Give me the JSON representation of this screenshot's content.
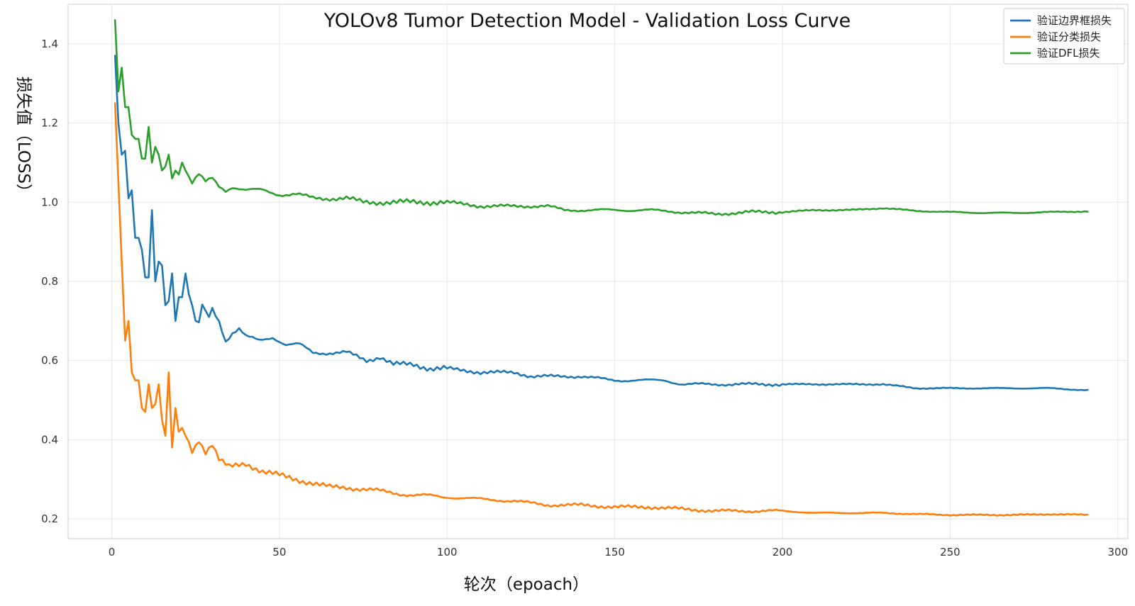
{
  "chart_data": {
    "type": "line",
    "title": "YOLOv8 Tumor Detection Model - Validation Loss Curve",
    "xlabel": "轮次（epoach）",
    "ylabel": "损失值（LOSS）",
    "xlim": [
      -13,
      303
    ],
    "ylim": [
      0.15,
      1.5
    ],
    "xticks": [
      "0",
      "50",
      "100",
      "150",
      "200",
      "250",
      "300"
    ],
    "yticks": [
      "0.2",
      "0.4",
      "0.6",
      "0.8",
      "1.0",
      "1.2",
      "1.4"
    ],
    "grid": true,
    "legend_position": "top-right",
    "x_range": [
      1,
      291
    ],
    "series": [
      {
        "name": "验证边界框损失",
        "color": "#1f77b4",
        "keypoints": [
          [
            1,
            1.37
          ],
          [
            2,
            1.2
          ],
          [
            3,
            1.12
          ],
          [
            4,
            1.13
          ],
          [
            5,
            1.01
          ],
          [
            6,
            1.03
          ],
          [
            7,
            0.91
          ],
          [
            8,
            0.91
          ],
          [
            9,
            0.88
          ],
          [
            10,
            0.81
          ],
          [
            11,
            0.81
          ],
          [
            12,
            0.98
          ],
          [
            13,
            0.8
          ],
          [
            14,
            0.85
          ],
          [
            15,
            0.84
          ],
          [
            16,
            0.74
          ],
          [
            17,
            0.75
          ],
          [
            18,
            0.82
          ],
          [
            19,
            0.7
          ],
          [
            20,
            0.76
          ],
          [
            21,
            0.76
          ],
          [
            22,
            0.82
          ],
          [
            23,
            0.77
          ],
          [
            25,
            0.7
          ],
          [
            26,
            0.69
          ],
          [
            27,
            0.74
          ],
          [
            28,
            0.72
          ],
          [
            29,
            0.71
          ],
          [
            30,
            0.73
          ],
          [
            32,
            0.7
          ],
          [
            34,
            0.65
          ],
          [
            36,
            0.67
          ],
          [
            38,
            0.68
          ],
          [
            40,
            0.66
          ],
          [
            44,
            0.65
          ],
          [
            48,
            0.66
          ],
          [
            52,
            0.64
          ],
          [
            56,
            0.64
          ],
          [
            60,
            0.62
          ],
          [
            64,
            0.62
          ],
          [
            70,
            0.62
          ],
          [
            76,
            0.6
          ],
          [
            80,
            0.61
          ],
          [
            84,
            0.59
          ],
          [
            90,
            0.59
          ],
          [
            95,
            0.58
          ],
          [
            100,
            0.58
          ],
          [
            110,
            0.57
          ],
          [
            120,
            0.57
          ],
          [
            125,
            0.56
          ],
          [
            130,
            0.56
          ],
          [
            140,
            0.56
          ],
          [
            150,
            0.55
          ],
          [
            160,
            0.55
          ],
          [
            165,
            0.55
          ],
          [
            170,
            0.54
          ],
          [
            180,
            0.54
          ],
          [
            190,
            0.54
          ],
          [
            200,
            0.54
          ],
          [
            210,
            0.54
          ],
          [
            220,
            0.54
          ],
          [
            230,
            0.54
          ],
          [
            240,
            0.53
          ],
          [
            250,
            0.53
          ],
          [
            260,
            0.53
          ],
          [
            270,
            0.53
          ],
          [
            280,
            0.53
          ],
          [
            291,
            0.525
          ]
        ]
      },
      {
        "name": "验证分类损失",
        "color": "#ff7f0e",
        "keypoints": [
          [
            1,
            1.25
          ],
          [
            2,
            1.05
          ],
          [
            3,
            0.85
          ],
          [
            4,
            0.65
          ],
          [
            5,
            0.7
          ],
          [
            6,
            0.57
          ],
          [
            7,
            0.55
          ],
          [
            8,
            0.55
          ],
          [
            9,
            0.48
          ],
          [
            10,
            0.47
          ],
          [
            11,
            0.54
          ],
          [
            12,
            0.48
          ],
          [
            13,
            0.49
          ],
          [
            14,
            0.54
          ],
          [
            15,
            0.45
          ],
          [
            16,
            0.41
          ],
          [
            17,
            0.57
          ],
          [
            18,
            0.38
          ],
          [
            19,
            0.48
          ],
          [
            20,
            0.42
          ],
          [
            21,
            0.43
          ],
          [
            22,
            0.41
          ],
          [
            24,
            0.37
          ],
          [
            26,
            0.4
          ],
          [
            28,
            0.37
          ],
          [
            30,
            0.39
          ],
          [
            32,
            0.35
          ],
          [
            35,
            0.33
          ],
          [
            40,
            0.34
          ],
          [
            45,
            0.32
          ],
          [
            50,
            0.31
          ],
          [
            55,
            0.3
          ],
          [
            60,
            0.29
          ],
          [
            65,
            0.28
          ],
          [
            70,
            0.28
          ],
          [
            75,
            0.275
          ],
          [
            80,
            0.27
          ],
          [
            90,
            0.26
          ],
          [
            100,
            0.255
          ],
          [
            110,
            0.25
          ],
          [
            120,
            0.245
          ],
          [
            125,
            0.24
          ],
          [
            130,
            0.235
          ],
          [
            140,
            0.235
          ],
          [
            150,
            0.23
          ],
          [
            160,
            0.23
          ],
          [
            170,
            0.225
          ],
          [
            180,
            0.22
          ],
          [
            190,
            0.22
          ],
          [
            200,
            0.22
          ],
          [
            210,
            0.215
          ],
          [
            220,
            0.215
          ],
          [
            230,
            0.215
          ],
          [
            240,
            0.212
          ],
          [
            250,
            0.21
          ],
          [
            260,
            0.21
          ],
          [
            270,
            0.21
          ],
          [
            280,
            0.212
          ],
          [
            291,
            0.21
          ]
        ]
      },
      {
        "name": "验证DFL损失",
        "color": "#2ca02c",
        "keypoints": [
          [
            1,
            1.46
          ],
          [
            2,
            1.28
          ],
          [
            3,
            1.34
          ],
          [
            4,
            1.24
          ],
          [
            5,
            1.24
          ],
          [
            6,
            1.17
          ],
          [
            7,
            1.16
          ],
          [
            8,
            1.16
          ],
          [
            9,
            1.11
          ],
          [
            10,
            1.11
          ],
          [
            11,
            1.19
          ],
          [
            12,
            1.1
          ],
          [
            13,
            1.14
          ],
          [
            14,
            1.12
          ],
          [
            15,
            1.08
          ],
          [
            16,
            1.09
          ],
          [
            17,
            1.12
          ],
          [
            18,
            1.06
          ],
          [
            19,
            1.08
          ],
          [
            20,
            1.07
          ],
          [
            21,
            1.1
          ],
          [
            22,
            1.08
          ],
          [
            24,
            1.05
          ],
          [
            26,
            1.07
          ],
          [
            28,
            1.05
          ],
          [
            30,
            1.06
          ],
          [
            32,
            1.04
          ],
          [
            34,
            1.03
          ],
          [
            36,
            1.04
          ],
          [
            40,
            1.03
          ],
          [
            45,
            1.03
          ],
          [
            50,
            1.02
          ],
          [
            55,
            1.02
          ],
          [
            60,
            1.01
          ],
          [
            65,
            1.01
          ],
          [
            70,
            1.01
          ],
          [
            75,
            1.0
          ],
          [
            80,
            1.0
          ],
          [
            90,
            1.0
          ],
          [
            95,
            1.0
          ],
          [
            100,
            1.0
          ],
          [
            110,
            0.99
          ],
          [
            120,
            0.99
          ],
          [
            130,
            0.99
          ],
          [
            135,
            0.98
          ],
          [
            140,
            0.98
          ],
          [
            150,
            0.98
          ],
          [
            160,
            0.98
          ],
          [
            170,
            0.975
          ],
          [
            180,
            0.97
          ],
          [
            190,
            0.975
          ],
          [
            200,
            0.975
          ],
          [
            210,
            0.98
          ],
          [
            220,
            0.98
          ],
          [
            230,
            0.985
          ],
          [
            240,
            0.978
          ],
          [
            250,
            0.975
          ],
          [
            260,
            0.973
          ],
          [
            270,
            0.973
          ],
          [
            280,
            0.975
          ],
          [
            291,
            0.977
          ]
        ]
      }
    ]
  }
}
